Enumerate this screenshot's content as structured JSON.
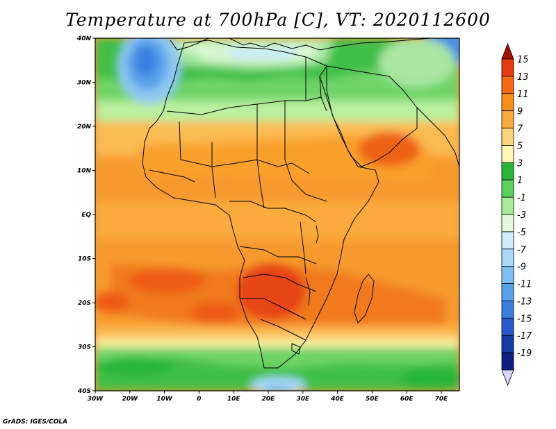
{
  "title": "Temperature at 700hPa [C], VT: 2020112600",
  "footer": "GrADS: IGES/COLA",
  "map": {
    "x_ticks": [
      "30W",
      "20W",
      "10W",
      "0",
      "10E",
      "20E",
      "30E",
      "40E",
      "50E",
      "60E",
      "70E"
    ],
    "y_ticks": [
      "40N",
      "30N",
      "20N",
      "10N",
      "EQ",
      "10S",
      "20S",
      "30S",
      "40S"
    ]
  },
  "colorbar": {
    "labels": [
      "15",
      "13",
      "11",
      "9",
      "7",
      "5",
      "3",
      "1",
      "-1",
      "-3",
      "-5",
      "-7",
      "-9",
      "-11",
      "-13",
      "-15",
      "-17",
      "-19"
    ],
    "colors": [
      "#a50f00",
      "#e8380d",
      "#f56a12",
      "#f98f14",
      "#fbaa3c",
      "#fdd37a",
      "#fff7b3",
      "#27b53a",
      "#5bd160",
      "#a9ec98",
      "#e3fbd9",
      "#cfefff",
      "#a9daf9",
      "#7ec0f3",
      "#57a2ea",
      "#3c7edf",
      "#2659cc",
      "#143aa8",
      "#0b2080",
      "#d6d6f4"
    ]
  }
}
